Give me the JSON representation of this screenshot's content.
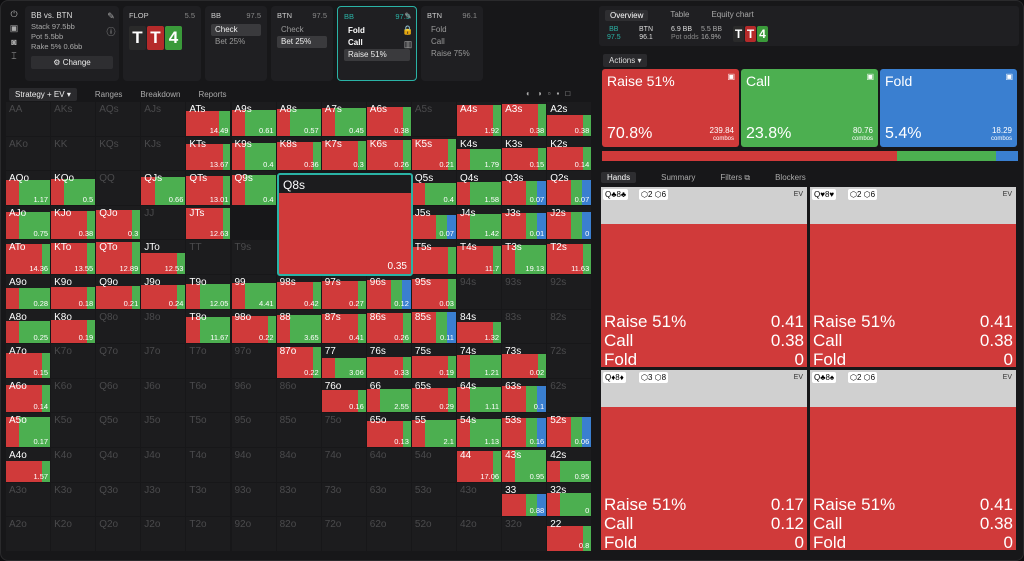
{
  "header": {
    "matchup": "BB vs. BTN",
    "stack": "Stack 97.5bb",
    "pot": "Pot 5.5bb",
    "rake": "Rake 5% 0.6bb",
    "change": "Change",
    "flop": {
      "label": "FLOP",
      "value": "5.5",
      "cards": [
        {
          "r": "T",
          "c": "#2a2a2a"
        },
        {
          "r": "T",
          "c": "#b52a2a"
        },
        {
          "r": "4",
          "c": "#3a9a3a"
        }
      ]
    },
    "bb1": {
      "pos": "BB",
      "stack": "97.5",
      "opts": [
        "Check",
        "Bet 25%"
      ]
    },
    "btn1": {
      "pos": "BTN",
      "stack": "97.5",
      "opts": [
        "Check",
        "Bet 25%"
      ]
    },
    "bb2": {
      "pos": "BB",
      "stack": "97.5",
      "opts": [
        "Fold",
        "Call",
        "Raise 51%"
      ]
    },
    "btn2": {
      "pos": "BTN",
      "stack": "96.1",
      "opts": [
        "Fold",
        "Call",
        "Raise 75%"
      ]
    }
  },
  "left_tabs": [
    "Strategy + EV",
    "Ranges",
    "Breakdown",
    "Reports"
  ],
  "big_cell": {
    "label": "Q8s",
    "value": "0.35"
  },
  "grid": [
    [
      "AA",
      "AKs",
      "AQs",
      "AJs",
      "ATs|r-g|14.49",
      "A9s|g|0.61",
      "A8s|g|0.57",
      "A7s|g|0.45",
      "A6s|r|0.38",
      "A5s",
      "A4s|r|1.92",
      "A3s|r|0.38",
      "A2s|r|0.38"
    ],
    [
      "AKo",
      "KK",
      "KQs",
      "KJs",
      "KTs|r|13.67",
      "K9s|g|0.4",
      "K8s|r|0.36",
      "K7s|r|0.3",
      "K6s|r|0.26",
      "K5s|r|0.21",
      "K4s|g|1.79",
      "K3s|r|0.15",
      "K2s|r|0.14"
    ],
    [
      "AQo|g|1.17",
      "KQo|g|0.5",
      "QQ",
      "QJs|g|0.66",
      "QTs|r|13.01",
      "Q9s|g|0.4",
      "",
      "",
      "",
      "Q5s|g|0.4",
      "Q4s|g|1.58",
      "Q3s|rb|0.07",
      "Q2s|rb|0.07"
    ],
    [
      "AJo|g|0.75",
      "KJo|r|0.38",
      "QJo|r|0.3",
      "JJ",
      "JTs|r|12.63",
      "",
      "",
      "",
      "",
      "J5s|rb|0.07",
      "J4s|g|1.42",
      "J3s|rb|0.01",
      "J2s|rb|0"
    ],
    [
      "ATo|r|14.36",
      "KTo|r|13.55",
      "QTo|r|12.89",
      "JTo|r|12.53",
      "TT",
      "T9s",
      "",
      "",
      "",
      "T5s|r|",
      "T4s|r|11.7",
      "T3s|g|19.13",
      "T2s|r|11.63"
    ],
    [
      "A9o|g|0.28",
      "K9o|r|0.18",
      "Q9o|r|0.21",
      "J9o|r|0.24",
      "T9o|g|12.05",
      "99|g|4.41",
      "98s|r|0.42",
      "97s|r|0.27",
      "96s|rb|0.12",
      "95s|r|0.03",
      "94s",
      "93s",
      "92s"
    ],
    [
      "A8o|g|0.25",
      "K8o|r|0.19",
      "Q8o",
      "J8o",
      "T8o|g|11.67",
      "98o|r|0.22",
      "88|g|3.65",
      "87s|r|0.41",
      "86s|r|0.26",
      "85s|rb|0.11",
      "84s|r|1.32",
      "83s",
      "82s"
    ],
    [
      "A7o|r|0.15",
      "K7o",
      "Q7o",
      "J7o",
      "T7o",
      "97o",
      "87o|r|0.22",
      "77|g|3.06",
      "76s|r|0.33",
      "75s|r|0.19",
      "74s|g|1.21",
      "73s|r|0.02",
      "72s"
    ],
    [
      "A6o|r|0.14",
      "K6o",
      "Q6o",
      "J6o",
      "T6o",
      "96o",
      "86o",
      "76o|r|0.16",
      "66|g|2.55",
      "65s|r|0.29",
      "64s|g|1.11",
      "63s|rb|0.1",
      "62s"
    ],
    [
      "A5o|g|0.17",
      "K5o",
      "Q5o",
      "J5o",
      "T5o",
      "95o",
      "85o",
      "75o",
      "65o|r|0.13",
      "55|g|2.1",
      "54s|g|1.13",
      "53s|rb|0.16",
      "52s|rb|0.06"
    ],
    [
      "A4o|r|1.57",
      "K4o",
      "Q4o",
      "J4o",
      "T4o",
      "94o",
      "84o",
      "74o",
      "64o",
      "54o",
      "44|r|17.06",
      "43s|g|0.95",
      "42s|g|0.95"
    ],
    [
      "A3o",
      "K3o",
      "Q3o",
      "J3o",
      "T3o",
      "93o",
      "83o",
      "73o",
      "63o",
      "53o",
      "43o",
      "33|rb|0.88",
      "32s|g|0"
    ],
    [
      "A2o",
      "K2o",
      "Q2o",
      "J2o",
      "T2o",
      "92o",
      "82o",
      "72o",
      "62o",
      "52o",
      "42o",
      "32o",
      "22|r|0.8"
    ]
  ],
  "right": {
    "tabs": [
      "Overview",
      "Table",
      "Equity chart"
    ],
    "bb": "BB",
    "bb_stack": "97.5",
    "btn": "BTN",
    "btn_stack": "96.1",
    "pot": "6.9 BB",
    "potodds_label": "Pot odds",
    "pot_odds": "16.9%",
    "eff": "5.5 BB",
    "actions_label": "Actions",
    "actions": [
      {
        "name": "Raise 51%",
        "pct": "70.8%",
        "combos": "239.84",
        "color": "#d03a3a"
      },
      {
        "name": "Call",
        "pct": "23.8%",
        "combos": "80.76",
        "color": "#4caf50"
      },
      {
        "name": "Fold",
        "pct": "5.4%",
        "combos": "18.29",
        "color": "#3a7fd0"
      }
    ],
    "combos_word": "combos",
    "hands_tabs": [
      "Hands",
      "Summary",
      "Filters",
      "Blockers"
    ],
    "hands": [
      {
        "hand": "Q♣8♣",
        "blk": "2",
        "eq": "6",
        "rows": [
          [
            "Raise 51%",
            "0.41"
          ],
          [
            "Call",
            "0.38"
          ],
          [
            "Fold",
            "0"
          ]
        ]
      },
      {
        "hand": "Q♥8♥",
        "blk": "2",
        "eq": "6",
        "rows": [
          [
            "Raise 51%",
            "0.41"
          ],
          [
            "Call",
            "0.38"
          ],
          [
            "Fold",
            "0"
          ]
        ]
      },
      {
        "hand": "Q♦8♦",
        "blk": "3",
        "eq": "8",
        "rows": [
          [
            "Raise 51%",
            "0.17"
          ],
          [
            "Call",
            "0.12"
          ],
          [
            "Fold",
            "0"
          ]
        ]
      },
      {
        "hand": "Q♣8♠",
        "blk": "2",
        "eq": "6",
        "rows": [
          [
            "Raise 51%",
            "0.41"
          ],
          [
            "Call",
            "0.38"
          ],
          [
            "Fold",
            "0"
          ]
        ]
      }
    ],
    "ev": "EV"
  }
}
